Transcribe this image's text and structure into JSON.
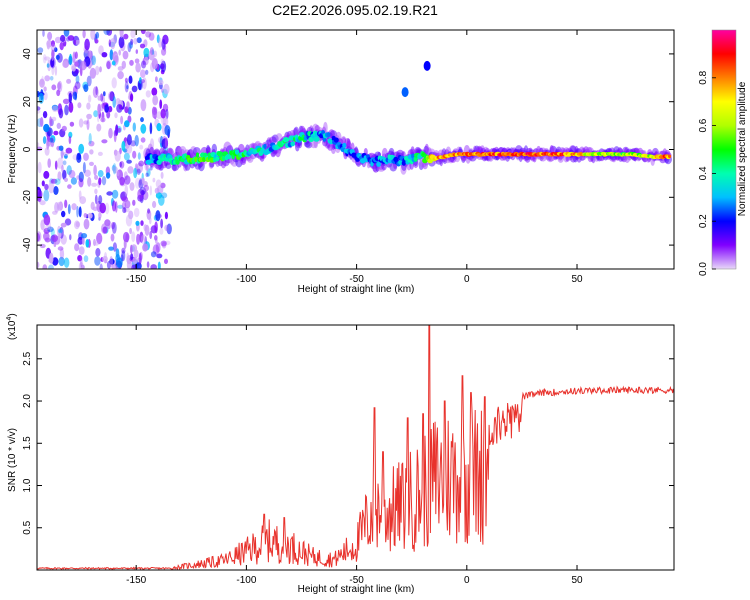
{
  "figure_title": "C2E2.2026.095.02.19.R21",
  "chart_data": [
    {
      "type": "heatmap",
      "xlabel": "Height of straight line (km)",
      "ylabel": "Frequency (Hz)",
      "xlim": [
        -195,
        94
      ],
      "ylim": [
        -50,
        50
      ],
      "x_ticks": [
        -150,
        -100,
        -50,
        0,
        50
      ],
      "y_ticks": [
        -40,
        -20,
        0,
        20,
        40
      ],
      "colorbar": {
        "label": "Normalized spectral amplitude",
        "range": [
          0,
          1
        ],
        "ticks": [
          "0.0",
          "0.2",
          "0.4",
          "0.6",
          "0.8"
        ],
        "colors": [
          "#e8d8f8",
          "#8000ff",
          "#0000ff",
          "#00c0ff",
          "#00ffb0",
          "#00ff00",
          "#b0ff00",
          "#ffff00",
          "#ff8000",
          "#ff0000",
          "#ff00a0"
        ]
      },
      "noise_region_x": [
        -195,
        -135
      ],
      "ridge": [
        {
          "x": -145,
          "y": -4,
          "a": 0.35
        },
        {
          "x": -135,
          "y": -4,
          "a": 0.45
        },
        {
          "x": -125,
          "y": -4,
          "a": 0.6
        },
        {
          "x": -115,
          "y": -3,
          "a": 0.55
        },
        {
          "x": -105,
          "y": -2,
          "a": 0.55
        },
        {
          "x": -95,
          "y": -1,
          "a": 0.5
        },
        {
          "x": -85,
          "y": 2,
          "a": 0.45
        },
        {
          "x": -75,
          "y": 5,
          "a": 0.5
        },
        {
          "x": -65,
          "y": 6,
          "a": 0.4
        },
        {
          "x": -58,
          "y": 2,
          "a": 0.35
        },
        {
          "x": -50,
          "y": -3,
          "a": 0.35
        },
        {
          "x": -42,
          "y": -5,
          "a": 0.35
        },
        {
          "x": -35,
          "y": -4,
          "a": 0.4
        },
        {
          "x": -28,
          "y": -5,
          "a": 0.4
        },
        {
          "x": -20,
          "y": -3,
          "a": 0.55
        },
        {
          "x": -15,
          "y": -4,
          "a": 0.85
        },
        {
          "x": -5,
          "y": -2,
          "a": 0.9
        },
        {
          "x": 5,
          "y": -2,
          "a": 0.95
        },
        {
          "x": 15,
          "y": -2,
          "a": 0.95
        },
        {
          "x": 25,
          "y": -2,
          "a": 0.95
        },
        {
          "x": 35,
          "y": -2,
          "a": 0.95
        },
        {
          "x": 45,
          "y": -2,
          "a": 0.95
        },
        {
          "x": 55,
          "y": -2,
          "a": 0.8
        },
        {
          "x": 65,
          "y": -2,
          "a": 0.7
        },
        {
          "x": 75,
          "y": -2,
          "a": 0.7
        },
        {
          "x": 85,
          "y": -3,
          "a": 0.8
        },
        {
          "x": 92,
          "y": -3,
          "a": 0.95
        }
      ],
      "isolated_blobs": [
        {
          "x": -28,
          "y": 24,
          "a": 0.25
        },
        {
          "x": -18,
          "y": 35,
          "a": 0.2
        }
      ]
    },
    {
      "type": "line",
      "xlabel": "Height of straight line (km)",
      "ylabel": "SNR (10 * v/v)",
      "y_multiplier_label": "(x10",
      "y_multiplier_exp": "4",
      "y_multiplier_close": ")",
      "xlim": [
        -195,
        94
      ],
      "ylim": [
        0,
        2.9
      ],
      "x_ticks": [
        -150,
        -100,
        -50,
        0,
        50
      ],
      "y_ticks": [
        "0.5",
        "1.0",
        "1.5",
        "2.0",
        "2.5"
      ],
      "line_color": "#e8322c",
      "envelope": [
        {
          "x": -195,
          "y": 0.01
        },
        {
          "x": -150,
          "y": 0.01
        },
        {
          "x": -135,
          "y": 0.03
        },
        {
          "x": -120,
          "y": 0.12
        },
        {
          "x": -110,
          "y": 0.18
        },
        {
          "x": -100,
          "y": 0.35
        },
        {
          "x": -90,
          "y": 0.55
        },
        {
          "x": -80,
          "y": 0.45
        },
        {
          "x": -70,
          "y": 0.25
        },
        {
          "x": -60,
          "y": 0.2
        },
        {
          "x": -50,
          "y": 0.5
        },
        {
          "x": -42,
          "y": 1.2
        },
        {
          "x": -35,
          "y": 1.1
        },
        {
          "x": -30,
          "y": 1.2
        },
        {
          "x": -22,
          "y": 1.4
        },
        {
          "x": -15,
          "y": 1.7
        },
        {
          "x": -5,
          "y": 1.8
        },
        {
          "x": 5,
          "y": 1.8
        },
        {
          "x": 15,
          "y": 1.95
        },
        {
          "x": 25,
          "y": 2.05
        },
        {
          "x": 35,
          "y": 2.1
        },
        {
          "x": 50,
          "y": 2.12
        },
        {
          "x": 70,
          "y": 2.13
        },
        {
          "x": 94,
          "y": 2.13
        }
      ],
      "spikes": [
        {
          "x": -92,
          "y": 0.66
        },
        {
          "x": -83,
          "y": 0.62
        },
        {
          "x": -42,
          "y": 1.92
        },
        {
          "x": -38,
          "y": 1.4
        },
        {
          "x": -27,
          "y": 1.8
        },
        {
          "x": -20,
          "y": 1.85
        },
        {
          "x": -17,
          "y": 2.9
        },
        {
          "x": -10,
          "y": 2.0
        },
        {
          "x": -2,
          "y": 2.3
        },
        {
          "x": 2,
          "y": 2.1
        },
        {
          "x": 8,
          "y": 2.05
        }
      ]
    }
  ]
}
